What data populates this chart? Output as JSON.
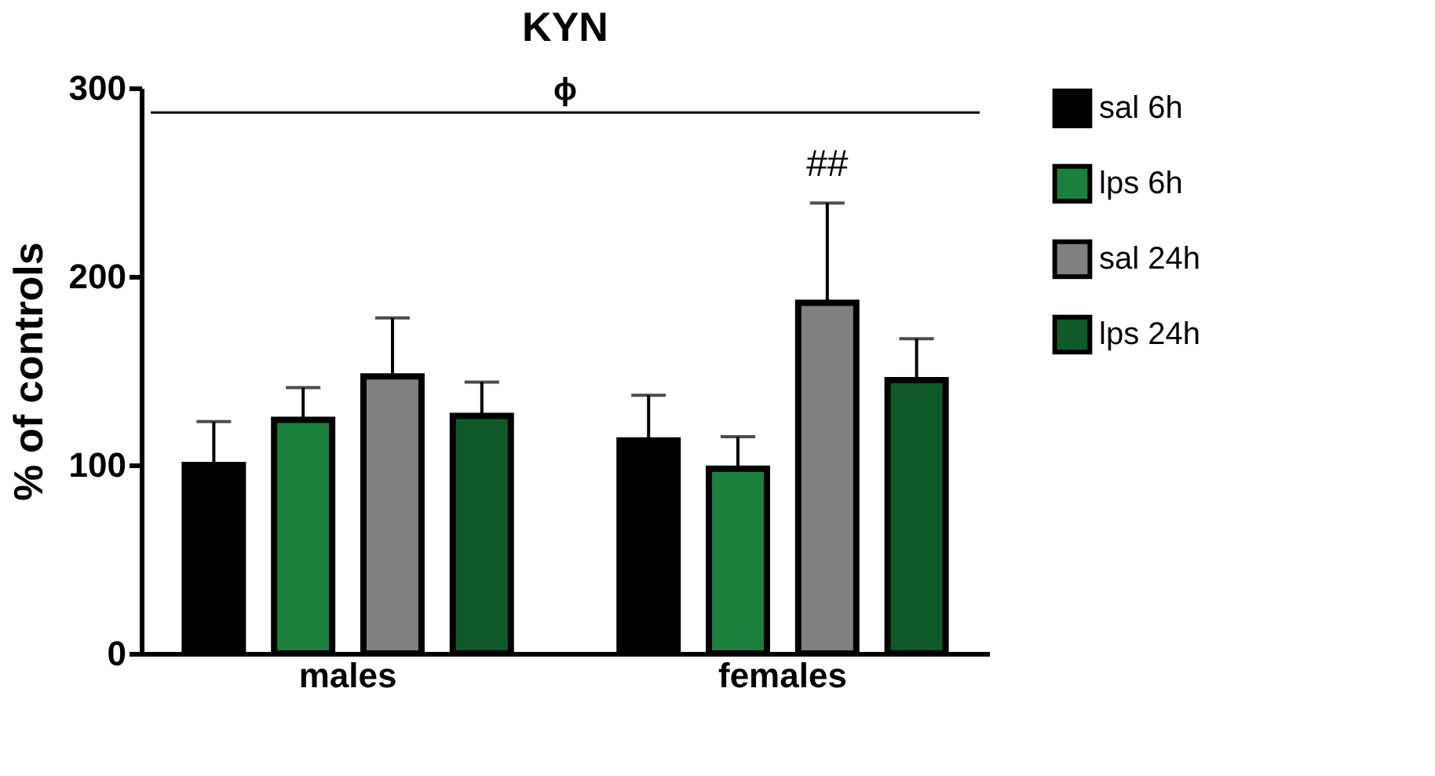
{
  "chart_data": {
    "type": "bar",
    "title": "KYN",
    "ylabel": "% of controls",
    "categories": [
      "males",
      "females"
    ],
    "series": [
      {
        "name": "sal 6h",
        "color": "#000000",
        "values": [
          100,
          113
        ],
        "errors": [
          [
            100,
            123
          ],
          [
            113,
            137
          ]
        ]
      },
      {
        "name": "lps 6h",
        "color": "#1b7f3e",
        "values": [
          124,
          98
        ],
        "errors": [
          [
            124,
            141
          ],
          [
            98,
            115
          ]
        ]
      },
      {
        "name": "sal 24h",
        "color": "#808080",
        "values": [
          147,
          186
        ],
        "errors": [
          [
            147,
            178
          ],
          [
            186,
            239
          ]
        ]
      },
      {
        "name": "lps 24h",
        "color": "#0f5a28",
        "values": [
          126,
          145
        ],
        "errors": [
          [
            126,
            144
          ],
          [
            145,
            167
          ]
        ]
      }
    ],
    "ylim": [
      0,
      300
    ],
    "yticks": [
      0,
      100,
      200,
      300
    ],
    "grid": false,
    "legend": "right",
    "ref_lines": [
      {
        "axis": "y",
        "value": 287,
        "label": "ϕ"
      }
    ],
    "annotations": [
      "##"
    ]
  }
}
